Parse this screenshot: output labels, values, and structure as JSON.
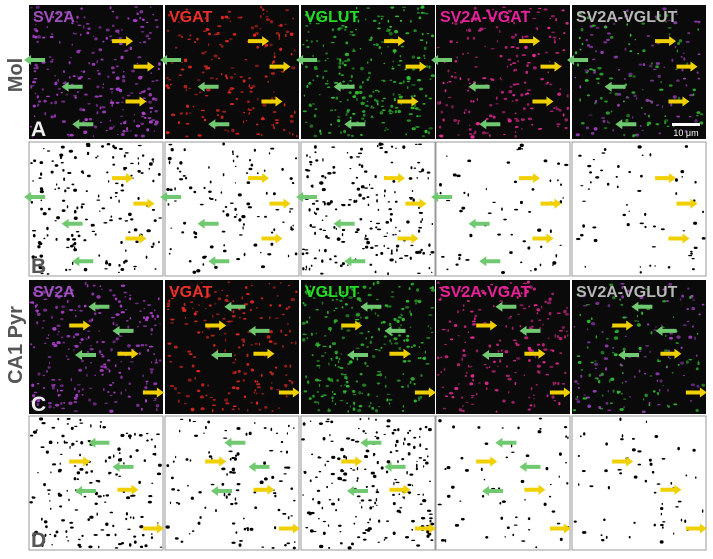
{
  "side_labels": [
    "Mol",
    "CA1 Pyr"
  ],
  "panel_rows": [
    {
      "letter": "A",
      "titles": [
        "SV2A",
        "VGAT",
        "VGLUT",
        "SV2A-VGAT",
        "SV2A-VGLUT"
      ]
    },
    {
      "letter": "B"
    },
    {
      "letter": "C",
      "titles": [
        "SV2A",
        "VGAT",
        "VGLUT",
        "SV2A-VGAT",
        "SV2A-VGLUT"
      ]
    },
    {
      "letter": "D"
    }
  ],
  "scale_bar": "10 μm"
}
